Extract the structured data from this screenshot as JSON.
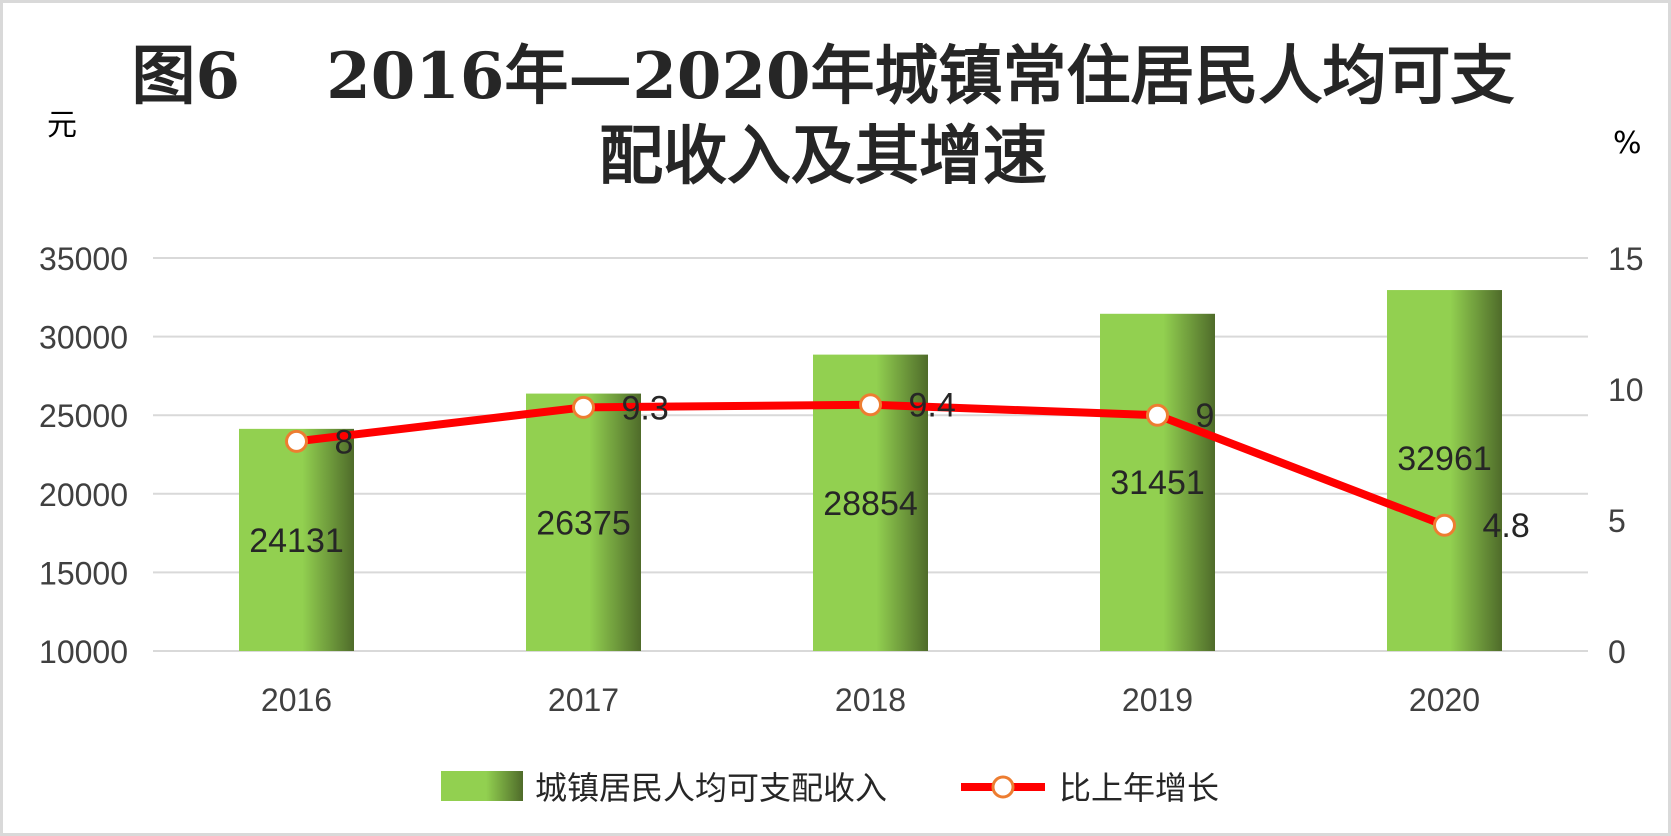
{
  "chart_data": {
    "type": "bar",
    "title": "图6　 2016年—2020年城镇常住居民人均可支配收入及其增速",
    "title_lines": [
      "图6　 2016年—2020年城镇常住居民人均可支配收入及其增速"
    ],
    "title_line1": "图6　 2016年—2020年城镇常住居民人均可支",
    "title_line2": "配收入及其增速",
    "categories": [
      "2016",
      "2017",
      "2018",
      "2019",
      "2020"
    ],
    "left_axis": {
      "unit": "元",
      "ylim": [
        10000,
        35000
      ],
      "ticks": [
        "10000",
        "15000",
        "20000",
        "25000",
        "30000",
        "35000"
      ]
    },
    "right_axis": {
      "unit": "%",
      "ylim": [
        0,
        15
      ],
      "ticks": [
        "0",
        "5",
        "10",
        "15"
      ]
    },
    "series": [
      {
        "name": "城镇居民人均可支配收入",
        "type": "bar",
        "axis": "left",
        "values": [
          24131,
          26375,
          28854,
          31451,
          32961
        ],
        "labels": [
          "24131",
          "26375",
          "28854",
          "31451",
          "32961"
        ]
      },
      {
        "name": "比上年增长",
        "type": "line",
        "axis": "right",
        "values": [
          8,
          9.3,
          9.4,
          9,
          4.8
        ],
        "labels": [
          "8",
          "9.3",
          "9.4",
          "9",
          "4.8"
        ]
      }
    ],
    "grid": true,
    "legend_position": "bottom",
    "colors": {
      "bar_light": "#92d050",
      "bar_dark": "#4f6b2a",
      "line": "#ff0000",
      "marker_stroke": "#ed7d31",
      "marker_fill": "#ffffff",
      "grid": "#d9d9d9"
    }
  }
}
